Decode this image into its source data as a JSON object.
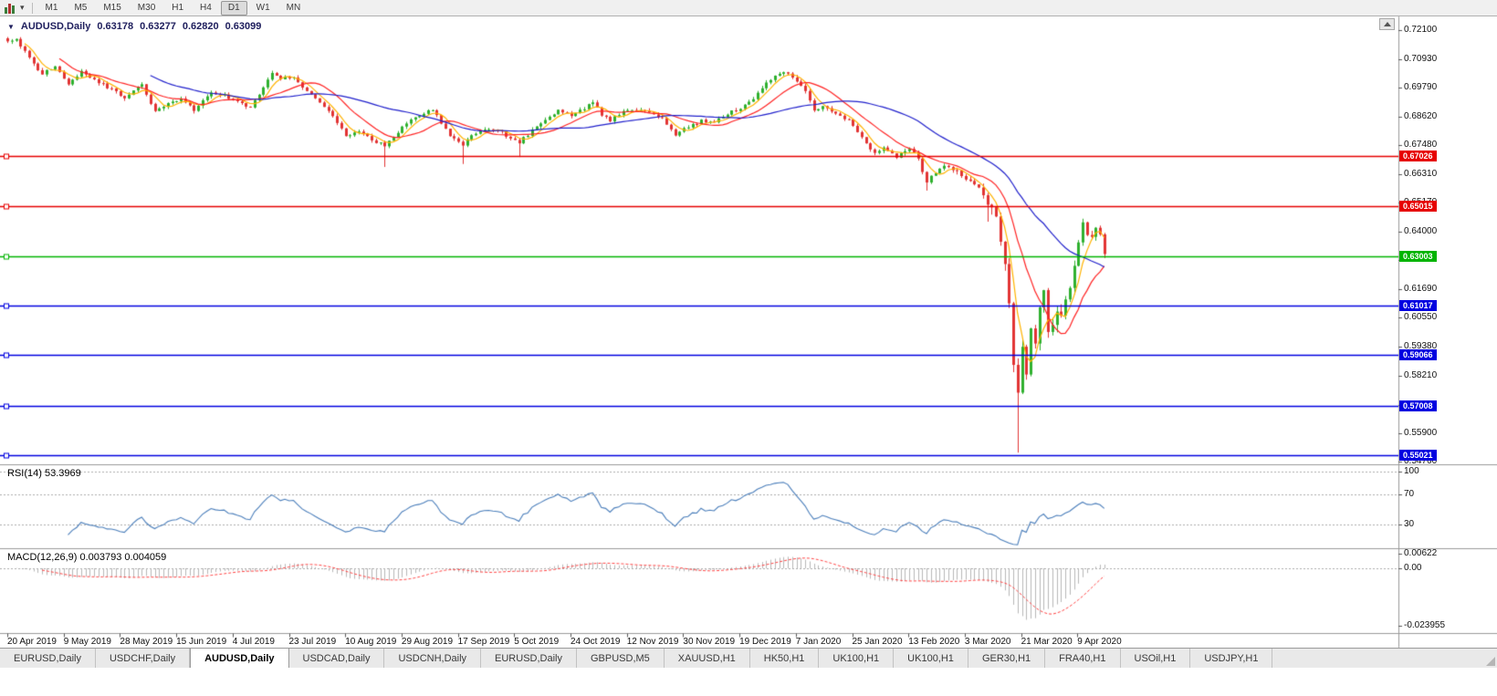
{
  "toolbar": {
    "timeframes": [
      "M1",
      "M5",
      "M15",
      "M30",
      "H1",
      "H4",
      "D1",
      "W1",
      "MN"
    ],
    "active_timeframe": "D1"
  },
  "chart": {
    "symbol_label": "AUDUSD,Daily",
    "ohlc": {
      "open": "0.63178",
      "high": "0.63277",
      "low": "0.62820",
      "close": "0.63099"
    }
  },
  "rsi_panel": {
    "label": "RSI(14) 53.3969",
    "axis_labels": [
      "100",
      "70",
      "30"
    ]
  },
  "macd_panel": {
    "label": "MACD(12,26,9) 0.003793 0.004059",
    "axis_labels": [
      "0.00622",
      "0.00",
      "-0.023955"
    ]
  },
  "tabs": {
    "items": [
      "EURUSD,Daily",
      "USDCHF,Daily",
      "AUDUSD,Daily",
      "USDCAD,Daily",
      "USDCNH,Daily",
      "EURUSD,Daily",
      "GBPUSD,M5",
      "XAUUSD,H1",
      "HK50,H1",
      "UK100,H1",
      "UK100,H1",
      "GER30,H1",
      "FRA40,H1",
      "USOil,H1",
      "USDJPY,H1"
    ],
    "active_index": 2
  },
  "chart_data": {
    "type": "candlestick",
    "symbol": "AUDUSD",
    "timeframe": "Daily",
    "current_ohlc": {
      "open": 0.63178,
      "high": 0.63277,
      "low": 0.6282,
      "close": 0.63099
    },
    "y_range": [
      0.5476,
      0.721
    ],
    "y_axis_ticks": [
      "0.72100",
      "0.70930",
      "0.69790",
      "0.68620",
      "0.67480",
      "0.66310",
      "0.65170",
      "0.64000",
      "0.62860",
      "0.61690",
      "0.60550",
      "0.59380",
      "0.58210",
      "0.57040",
      "0.55900",
      "0.54760"
    ],
    "x_axis_ticks": [
      "20 Apr 2019",
      "9 May 2019",
      "28 May 2019",
      "15 Jun 2019",
      "4 Jul 2019",
      "23 Jul 2019",
      "10 Aug 2019",
      "29 Aug 2019",
      "17 Sep 2019",
      "5 Oct 2019",
      "24 Oct 2019",
      "12 Nov 2019",
      "30 Nov 2019",
      "19 Dec 2019",
      "7 Jan 2020",
      "25 Jan 2020",
      "13 Feb 2020",
      "3 Mar 2020",
      "21 Mar 2020",
      "9 Apr 2020"
    ],
    "bars": 254,
    "bull_color": "#2fb12f",
    "bear_color": "#e23434",
    "price_path": [
      [
        0,
        0.7165
      ],
      [
        2,
        0.7175
      ],
      [
        5,
        0.7095
      ],
      [
        8,
        0.703
      ],
      [
        11,
        0.707
      ],
      [
        14,
        0.699
      ],
      [
        17,
        0.704
      ],
      [
        21,
        0.7
      ],
      [
        24,
        0.697
      ],
      [
        27,
        0.694
      ],
      [
        31,
        0.699
      ],
      [
        34,
        0.688
      ],
      [
        37,
        0.692
      ],
      [
        40,
        0.6935
      ],
      [
        43,
        0.689
      ],
      [
        47,
        0.696
      ],
      [
        50,
        0.6945
      ],
      [
        53,
        0.6925
      ],
      [
        56,
        0.6895
      ],
      [
        59,
        0.6985
      ],
      [
        61,
        0.704
      ],
      [
        63,
        0.7015
      ],
      [
        66,
        0.7025
      ],
      [
        69,
        0.696
      ],
      [
        72,
        0.692
      ],
      [
        75,
        0.687
      ],
      [
        78,
        0.6785
      ],
      [
        81,
        0.68
      ],
      [
        84,
        0.677
      ],
      [
        87,
        0.6745
      ],
      [
        90,
        0.68
      ],
      [
        93,
        0.6855
      ],
      [
        96,
        0.6875
      ],
      [
        98,
        0.689
      ],
      [
        100,
        0.684
      ],
      [
        102,
        0.679
      ],
      [
        105,
        0.675
      ],
      [
        107,
        0.6785
      ],
      [
        110,
        0.6815
      ],
      [
        113,
        0.681
      ],
      [
        116,
        0.6775
      ],
      [
        118,
        0.676
      ],
      [
        121,
        0.6805
      ],
      [
        124,
        0.685
      ],
      [
        127,
        0.689
      ],
      [
        130,
        0.6865
      ],
      [
        133,
        0.6895
      ],
      [
        135,
        0.6925
      ],
      [
        137,
        0.687
      ],
      [
        139,
        0.6845
      ],
      [
        142,
        0.6885
      ],
      [
        145,
        0.689
      ],
      [
        148,
        0.6875
      ],
      [
        151,
        0.6855
      ],
      [
        154,
        0.679
      ],
      [
        157,
        0.682
      ],
      [
        160,
        0.6845
      ],
      [
        163,
        0.684
      ],
      [
        166,
        0.6875
      ],
      [
        169,
        0.6895
      ],
      [
        172,
        0.693
      ],
      [
        175,
        0.7005
      ],
      [
        178,
        0.703
      ],
      [
        180,
        0.704
      ],
      [
        182,
        0.7
      ],
      [
        184,
        0.696
      ],
      [
        186,
        0.6885
      ],
      [
        188,
        0.6905
      ],
      [
        190,
        0.688
      ],
      [
        192,
        0.686
      ],
      [
        194,
        0.6845
      ],
      [
        197,
        0.678
      ],
      [
        200,
        0.6715
      ],
      [
        202,
        0.674
      ],
      [
        205,
        0.67
      ],
      [
        208,
        0.6735
      ],
      [
        210,
        0.669
      ],
      [
        212,
        0.66
      ],
      [
        214,
        0.664
      ],
      [
        216,
        0.6665
      ],
      [
        218,
        0.665
      ],
      [
        220,
        0.6625
      ],
      [
        222,
        0.66
      ],
      [
        224,
        0.657
      ],
      [
        226,
        0.651
      ],
      [
        228,
        0.6455
      ],
      [
        229,
        0.637
      ],
      [
        230,
        0.626
      ],
      [
        231,
        0.612
      ],
      [
        232,
        0.588
      ],
      [
        233,
        0.576
      ],
      [
        234,
        0.594
      ],
      [
        235,
        0.582
      ],
      [
        236,
        0.6
      ],
      [
        237,
        0.596
      ],
      [
        238,
        0.609
      ],
      [
        239,
        0.615
      ],
      [
        240,
        0.5995
      ],
      [
        241,
        0.603
      ],
      [
        242,
        0.608
      ],
      [
        243,
        0.605
      ],
      [
        244,
        0.6135
      ],
      [
        245,
        0.618
      ],
      [
        246,
        0.628
      ],
      [
        247,
        0.635
      ],
      [
        248,
        0.643
      ],
      [
        249,
        0.6395
      ],
      [
        250,
        0.637
      ],
      [
        251,
        0.6415
      ],
      [
        252,
        0.639
      ],
      [
        253,
        0.631
      ]
    ],
    "spikes": [
      {
        "bar": 87,
        "low": 0.666
      },
      {
        "bar": 105,
        "low": 0.6672
      },
      {
        "bar": 118,
        "low": 0.67
      },
      {
        "bar": 212,
        "low": 0.6565
      },
      {
        "bar": 226,
        "low": 0.644
      },
      {
        "bar": 233,
        "low": 0.5512
      },
      {
        "bar": 248,
        "high": 0.6452
      }
    ],
    "moving_averages": [
      {
        "period": 5,
        "color": "#ffb300"
      },
      {
        "period": 13,
        "color": "#ff2222"
      },
      {
        "period": 34,
        "color": "#2020cc"
      }
    ],
    "horizontal_levels": [
      {
        "price": 0.67026,
        "label": "0.67026",
        "color": "#e60000",
        "kind": "resistance"
      },
      {
        "price": 0.65015,
        "label": "0.65015",
        "color": "#e60000",
        "kind": "resistance"
      },
      {
        "price": 0.63003,
        "label": "0.63003",
        "color": "#00b400",
        "kind": "current-level"
      },
      {
        "price": 0.61017,
        "label": "0.61017",
        "color": "#0000e0",
        "kind": "support"
      },
      {
        "price": 0.59066,
        "label": "0.59066",
        "color": "#0000e0",
        "kind": "support"
      },
      {
        "price": 0.57008,
        "label": "0.57008",
        "color": "#0000e0",
        "kind": "support"
      },
      {
        "price": 0.55021,
        "label": "0.55021",
        "color": "#0000e0",
        "kind": "support"
      }
    ],
    "rsi": {
      "period": 14,
      "current": 53.3969,
      "levels": [
        100,
        70,
        30
      ],
      "color": "#4a7ebb"
    },
    "macd": {
      "fast": 12,
      "slow": 26,
      "signal": 9,
      "current_main": 0.003793,
      "current_signal": 0.004059,
      "axis_max": 0.00622,
      "axis_min": -0.023955,
      "histogram_color": "#b8b8b8",
      "signal_color": "#ff4444"
    }
  }
}
